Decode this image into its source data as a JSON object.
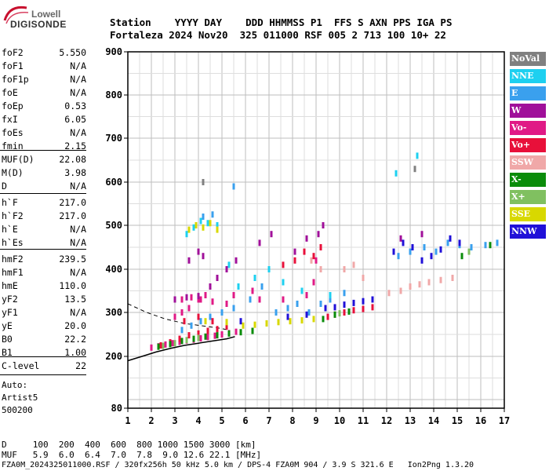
{
  "logo": {
    "line1": "Lowell",
    "line2": "DIGISONDE"
  },
  "header": {
    "row1": "Station    YYYY DAY    DDD HHMMSS P1  FFS S AXN PPS IGA PS",
    "row2": "Fortaleza 2024 Nov20  325 011000 RSF 005 2 713 100 10+ 22"
  },
  "params_group1": [
    {
      "k": "foF2",
      "v": "5.550"
    },
    {
      "k": "foF1",
      "v": "N/A"
    },
    {
      "k": "foF1p",
      "v": "N/A"
    },
    {
      "k": "foE",
      "v": "N/A"
    },
    {
      "k": "foEp",
      "v": "0.53"
    },
    {
      "k": "fxI",
      "v": "6.05"
    },
    {
      "k": "foEs",
      "v": "N/A"
    },
    {
      "k": "fmin",
      "v": "2.15"
    }
  ],
  "params_group2": [
    {
      "k": "MUF(D)",
      "v": "22.08"
    },
    {
      "k": "M(D)",
      "v": "3.98"
    },
    {
      "k": "D",
      "v": "N/A"
    }
  ],
  "params_group3": [
    {
      "k": "h`F",
      "v": "217.0"
    },
    {
      "k": "h`F2",
      "v": "217.0"
    },
    {
      "k": "h`E",
      "v": "N/A"
    },
    {
      "k": "h`Es",
      "v": "N/A"
    }
  ],
  "params_group4": [
    {
      "k": "hmF2",
      "v": "239.5"
    },
    {
      "k": "hmF1",
      "v": "N/A"
    },
    {
      "k": "hmE",
      "v": "110.0"
    },
    {
      "k": "yF2",
      "v": "13.5"
    },
    {
      "k": "yF1",
      "v": "N/A"
    },
    {
      "k": "yE",
      "v": "20.0"
    },
    {
      "k": "B0",
      "v": "22.2"
    },
    {
      "k": "B1",
      "v": "1.00"
    }
  ],
  "params_group5": [
    {
      "k": "C-level",
      "v": "22"
    }
  ],
  "autoscale": {
    "line1": "Auto:",
    "line2": "Artist5",
    "line3": "500200"
  },
  "legend": [
    {
      "label": "NoVal",
      "color": "#808080"
    },
    {
      "label": "NNE",
      "color": "#1ed0f0"
    },
    {
      "label": "E",
      "color": "#3aa0ee"
    },
    {
      "label": "W",
      "color": "#a0109a"
    },
    {
      "label": "Vo-",
      "color": "#e01a86"
    },
    {
      "label": "Vo+",
      "color": "#e8103a"
    },
    {
      "label": "SSW",
      "color": "#f0a8a8"
    },
    {
      "label": "X-",
      "color": "#0a8c0a"
    },
    {
      "label": "X+",
      "color": "#80c060"
    },
    {
      "label": "SSE",
      "color": "#d8d800"
    },
    {
      "label": "NNW",
      "color": "#2010d8"
    }
  ],
  "footer": {
    "row1": "D     100  200  400  600  800 1000 1500 3000 [km]",
    "row2": "MUF   5.9  6.0  6.4  7.0  7.8  9.0 12.6 22.1 [MHz]",
    "row3": "FZA0M_2024325011000.RSF / 320fx256h 50 kHz 5.0 km / DPS-4 FZA0M 904 / 3.9 S 321.6 E   Ion2Png 1.3.20"
  },
  "chart_data": {
    "type": "scatter",
    "title": "",
    "xlabel": "",
    "ylabel": "",
    "xlim": [
      1,
      17
    ],
    "ylim": [
      80,
      900
    ],
    "x_ticks": [
      1,
      2,
      3,
      4,
      5,
      6,
      7,
      8,
      9,
      10,
      11,
      12,
      13,
      14,
      15,
      16,
      17
    ],
    "y_ticks": [
      80,
      200,
      300,
      400,
      500,
      600,
      700,
      800,
      900
    ],
    "y_scale": "nonlinear",
    "grid": true,
    "legend_position": "right",
    "series": [
      {
        "name": "Vo-",
        "color": "#e01a86",
        "points": [
          [
            2.0,
            220
          ],
          [
            2.3,
            223
          ],
          [
            2.6,
            227
          ],
          [
            2.9,
            230
          ],
          [
            3.2,
            233
          ],
          [
            3.5,
            236
          ],
          [
            3.8,
            238
          ],
          [
            4.1,
            241
          ],
          [
            4.4,
            244
          ],
          [
            4.7,
            247
          ],
          [
            5.0,
            250
          ],
          [
            5.3,
            253
          ],
          [
            5.6,
            256
          ],
          [
            3.0,
            290
          ],
          [
            3.3,
            300
          ],
          [
            3.6,
            310
          ],
          [
            4.0,
            330
          ],
          [
            4.3,
            340
          ],
          [
            4.6,
            325
          ],
          [
            5.2,
            320
          ],
          [
            5.5,
            340
          ],
          [
            6.3,
            350
          ],
          [
            6.6,
            330
          ],
          [
            7.6,
            330
          ],
          [
            8.6,
            340
          ],
          [
            8.9,
            370
          ],
          [
            9.0,
            420
          ],
          [
            3.3,
            330
          ],
          [
            3.7,
            335
          ],
          [
            4.1,
            330
          ]
        ]
      },
      {
        "name": "Vo+",
        "color": "#e8103a",
        "points": [
          [
            2.4,
            225
          ],
          [
            2.8,
            232
          ],
          [
            3.2,
            240
          ],
          [
            3.6,
            248
          ],
          [
            4.0,
            252
          ],
          [
            4.4,
            258
          ],
          [
            4.8,
            262
          ],
          [
            5.2,
            268
          ],
          [
            3.4,
            280
          ],
          [
            4.0,
            290
          ],
          [
            4.6,
            280
          ],
          [
            9.5,
            290
          ],
          [
            9.8,
            295
          ],
          [
            10.2,
            300
          ],
          [
            10.6,
            305
          ],
          [
            11.0,
            308
          ],
          [
            11.4,
            312
          ],
          [
            7.6,
            410
          ],
          [
            8.1,
            420
          ],
          [
            8.5,
            440
          ],
          [
            8.9,
            430
          ],
          [
            9.2,
            450
          ]
        ]
      },
      {
        "name": "W",
        "color": "#a0109a",
        "points": [
          [
            3.0,
            330
          ],
          [
            3.5,
            335
          ],
          [
            4.0,
            338
          ],
          [
            4.5,
            360
          ],
          [
            4.8,
            380
          ],
          [
            5.2,
            400
          ],
          [
            5.6,
            420
          ],
          [
            6.6,
            460
          ],
          [
            7.1,
            480
          ],
          [
            8.1,
            440
          ],
          [
            8.6,
            470
          ],
          [
            9.1,
            480
          ],
          [
            9.3,
            500
          ],
          [
            3.6,
            420
          ],
          [
            4.0,
            440
          ],
          [
            4.2,
            430
          ],
          [
            12.6,
            470
          ],
          [
            13.5,
            480
          ]
        ]
      },
      {
        "name": "E",
        "color": "#3aa0ee",
        "points": [
          [
            3.3,
            260
          ],
          [
            3.7,
            270
          ],
          [
            4.1,
            280
          ],
          [
            4.5,
            290
          ],
          [
            5.0,
            300
          ],
          [
            5.5,
            310
          ],
          [
            6.2,
            330
          ],
          [
            6.7,
            360
          ],
          [
            7.3,
            300
          ],
          [
            7.8,
            310
          ],
          [
            8.2,
            320
          ],
          [
            8.7,
            300
          ],
          [
            9.2,
            320
          ],
          [
            9.6,
            330
          ],
          [
            10.2,
            345
          ],
          [
            12.5,
            430
          ],
          [
            13.0,
            440
          ],
          [
            13.6,
            450
          ],
          [
            14.1,
            440
          ],
          [
            14.6,
            460
          ],
          [
            15.1,
            455
          ],
          [
            15.6,
            450
          ],
          [
            16.2,
            455
          ],
          [
            16.7,
            460
          ],
          [
            4.2,
            520
          ],
          [
            4.6,
            525
          ],
          [
            5.5,
            590
          ]
        ]
      },
      {
        "name": "NNE",
        "color": "#1ed0f0",
        "points": [
          [
            3.5,
            480
          ],
          [
            3.8,
            495
          ],
          [
            4.1,
            510
          ],
          [
            4.4,
            505
          ],
          [
            4.8,
            500
          ],
          [
            5.3,
            410
          ],
          [
            5.7,
            360
          ],
          [
            6.4,
            380
          ],
          [
            7.0,
            400
          ],
          [
            7.6,
            370
          ],
          [
            8.4,
            350
          ],
          [
            9.6,
            340
          ],
          [
            12.4,
            620
          ],
          [
            13.3,
            660
          ]
        ]
      },
      {
        "name": "SSW",
        "color": "#f0a8a8",
        "points": [
          [
            10.2,
            400
          ],
          [
            10.6,
            410
          ],
          [
            11.0,
            380
          ],
          [
            12.1,
            345
          ],
          [
            12.6,
            350
          ],
          [
            13.0,
            360
          ],
          [
            13.4,
            365
          ],
          [
            13.8,
            370
          ],
          [
            14.3,
            375
          ],
          [
            14.8,
            380
          ],
          [
            8.8,
            420
          ],
          [
            9.2,
            400
          ]
        ]
      },
      {
        "name": "X-",
        "color": "#0a8c0a",
        "points": [
          [
            2.3,
            222
          ],
          [
            2.8,
            228
          ],
          [
            3.3,
            235
          ],
          [
            3.8,
            240
          ],
          [
            4.3,
            245
          ],
          [
            4.8,
            248
          ],
          [
            5.3,
            252
          ],
          [
            5.8,
            255
          ],
          [
            6.3,
            258
          ],
          [
            9.3,
            285
          ],
          [
            9.8,
            295
          ],
          [
            10.4,
            302
          ],
          [
            15.2,
            430
          ],
          [
            16.4,
            455
          ]
        ]
      },
      {
        "name": "X+",
        "color": "#80c060",
        "points": [
          [
            2.5,
            224
          ],
          [
            3.0,
            230
          ],
          [
            3.5,
            237
          ],
          [
            4.0,
            242
          ],
          [
            10.0,
            298
          ],
          [
            15.5,
            440
          ]
        ]
      },
      {
        "name": "SSE",
        "color": "#d8d800",
        "points": [
          [
            3.6,
            490
          ],
          [
            3.9,
            500
          ],
          [
            4.2,
            495
          ],
          [
            4.5,
            505
          ],
          [
            4.8,
            490
          ],
          [
            5.9,
            270
          ],
          [
            6.4,
            272
          ],
          [
            6.9,
            275
          ],
          [
            7.4,
            278
          ],
          [
            7.9,
            280
          ],
          [
            8.4,
            282
          ],
          [
            8.9,
            285
          ],
          [
            4.3,
            280
          ],
          [
            5.2,
            278
          ]
        ]
      },
      {
        "name": "NNW",
        "color": "#2010d8",
        "points": [
          [
            9.4,
            310
          ],
          [
            9.8,
            312
          ],
          [
            10.2,
            318
          ],
          [
            10.6,
            322
          ],
          [
            11.0,
            326
          ],
          [
            11.4,
            330
          ],
          [
            12.3,
            440
          ],
          [
            12.7,
            460
          ],
          [
            13.1,
            450
          ],
          [
            13.5,
            420
          ],
          [
            13.9,
            430
          ],
          [
            14.3,
            445
          ],
          [
            14.7,
            470
          ],
          [
            15.1,
            460
          ],
          [
            5.8,
            280
          ],
          [
            7.8,
            290
          ],
          [
            8.6,
            295
          ]
        ]
      },
      {
        "name": "NoVal",
        "color": "#808080",
        "points": [
          [
            4.2,
            600
          ],
          [
            13.2,
            630
          ]
        ]
      }
    ]
  },
  "model_curves": {
    "dashed": [
      [
        1,
        320
      ],
      [
        1.8,
        300
      ],
      [
        2.6,
        285
      ],
      [
        3.4,
        275
      ],
      [
        4.1,
        270
      ],
      [
        4.8,
        265
      ],
      [
        5.3,
        260
      ]
    ],
    "solid": [
      [
        1,
        190
      ],
      [
        1.6,
        200
      ],
      [
        2.2,
        210
      ],
      [
        2.8,
        218
      ],
      [
        3.4,
        225
      ],
      [
        4.0,
        230
      ],
      [
        4.6,
        235
      ],
      [
        5.2,
        240
      ],
      [
        5.55,
        245
      ]
    ]
  }
}
